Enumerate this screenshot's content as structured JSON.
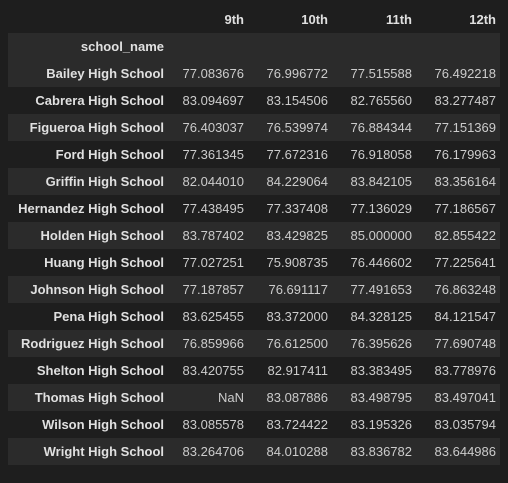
{
  "table": {
    "columns": [
      "9th",
      "10th",
      "11th",
      "12th"
    ],
    "index_name": "school_name",
    "rows": [
      {
        "name": "Bailey High School",
        "values": [
          "77.083676",
          "76.996772",
          "77.515588",
          "76.492218"
        ]
      },
      {
        "name": "Cabrera High School",
        "values": [
          "83.094697",
          "83.154506",
          "82.765560",
          "83.277487"
        ]
      },
      {
        "name": "Figueroa High School",
        "values": [
          "76.403037",
          "76.539974",
          "76.884344",
          "77.151369"
        ]
      },
      {
        "name": "Ford High School",
        "values": [
          "77.361345",
          "77.672316",
          "76.918058",
          "76.179963"
        ]
      },
      {
        "name": "Griffin High School",
        "values": [
          "82.044010",
          "84.229064",
          "83.842105",
          "83.356164"
        ]
      },
      {
        "name": "Hernandez High School",
        "values": [
          "77.438495",
          "77.337408",
          "77.136029",
          "77.186567"
        ]
      },
      {
        "name": "Holden High School",
        "values": [
          "83.787402",
          "83.429825",
          "85.000000",
          "82.855422"
        ]
      },
      {
        "name": "Huang High School",
        "values": [
          "77.027251",
          "75.908735",
          "76.446602",
          "77.225641"
        ]
      },
      {
        "name": "Johnson High School",
        "values": [
          "77.187857",
          "76.691117",
          "77.491653",
          "76.863248"
        ]
      },
      {
        "name": "Pena High School",
        "values": [
          "83.625455",
          "83.372000",
          "84.328125",
          "84.121547"
        ]
      },
      {
        "name": "Rodriguez High School",
        "values": [
          "76.859966",
          "76.612500",
          "76.395626",
          "77.690748"
        ]
      },
      {
        "name": "Shelton High School",
        "values": [
          "83.420755",
          "82.917411",
          "83.383495",
          "83.778976"
        ]
      },
      {
        "name": "Thomas High School",
        "values": [
          "NaN",
          "83.087886",
          "83.498795",
          "83.497041"
        ]
      },
      {
        "name": "Wilson High School",
        "values": [
          "83.085578",
          "83.724422",
          "83.195326",
          "83.035794"
        ]
      },
      {
        "name": "Wright High School",
        "values": [
          "83.264706",
          "84.010288",
          "83.836782",
          "83.644986"
        ]
      }
    ]
  },
  "colors": {
    "background": "#1e1e1e",
    "stripe": "#2b2b2b",
    "text": "#cccccc",
    "header": "#e0e0e0"
  }
}
